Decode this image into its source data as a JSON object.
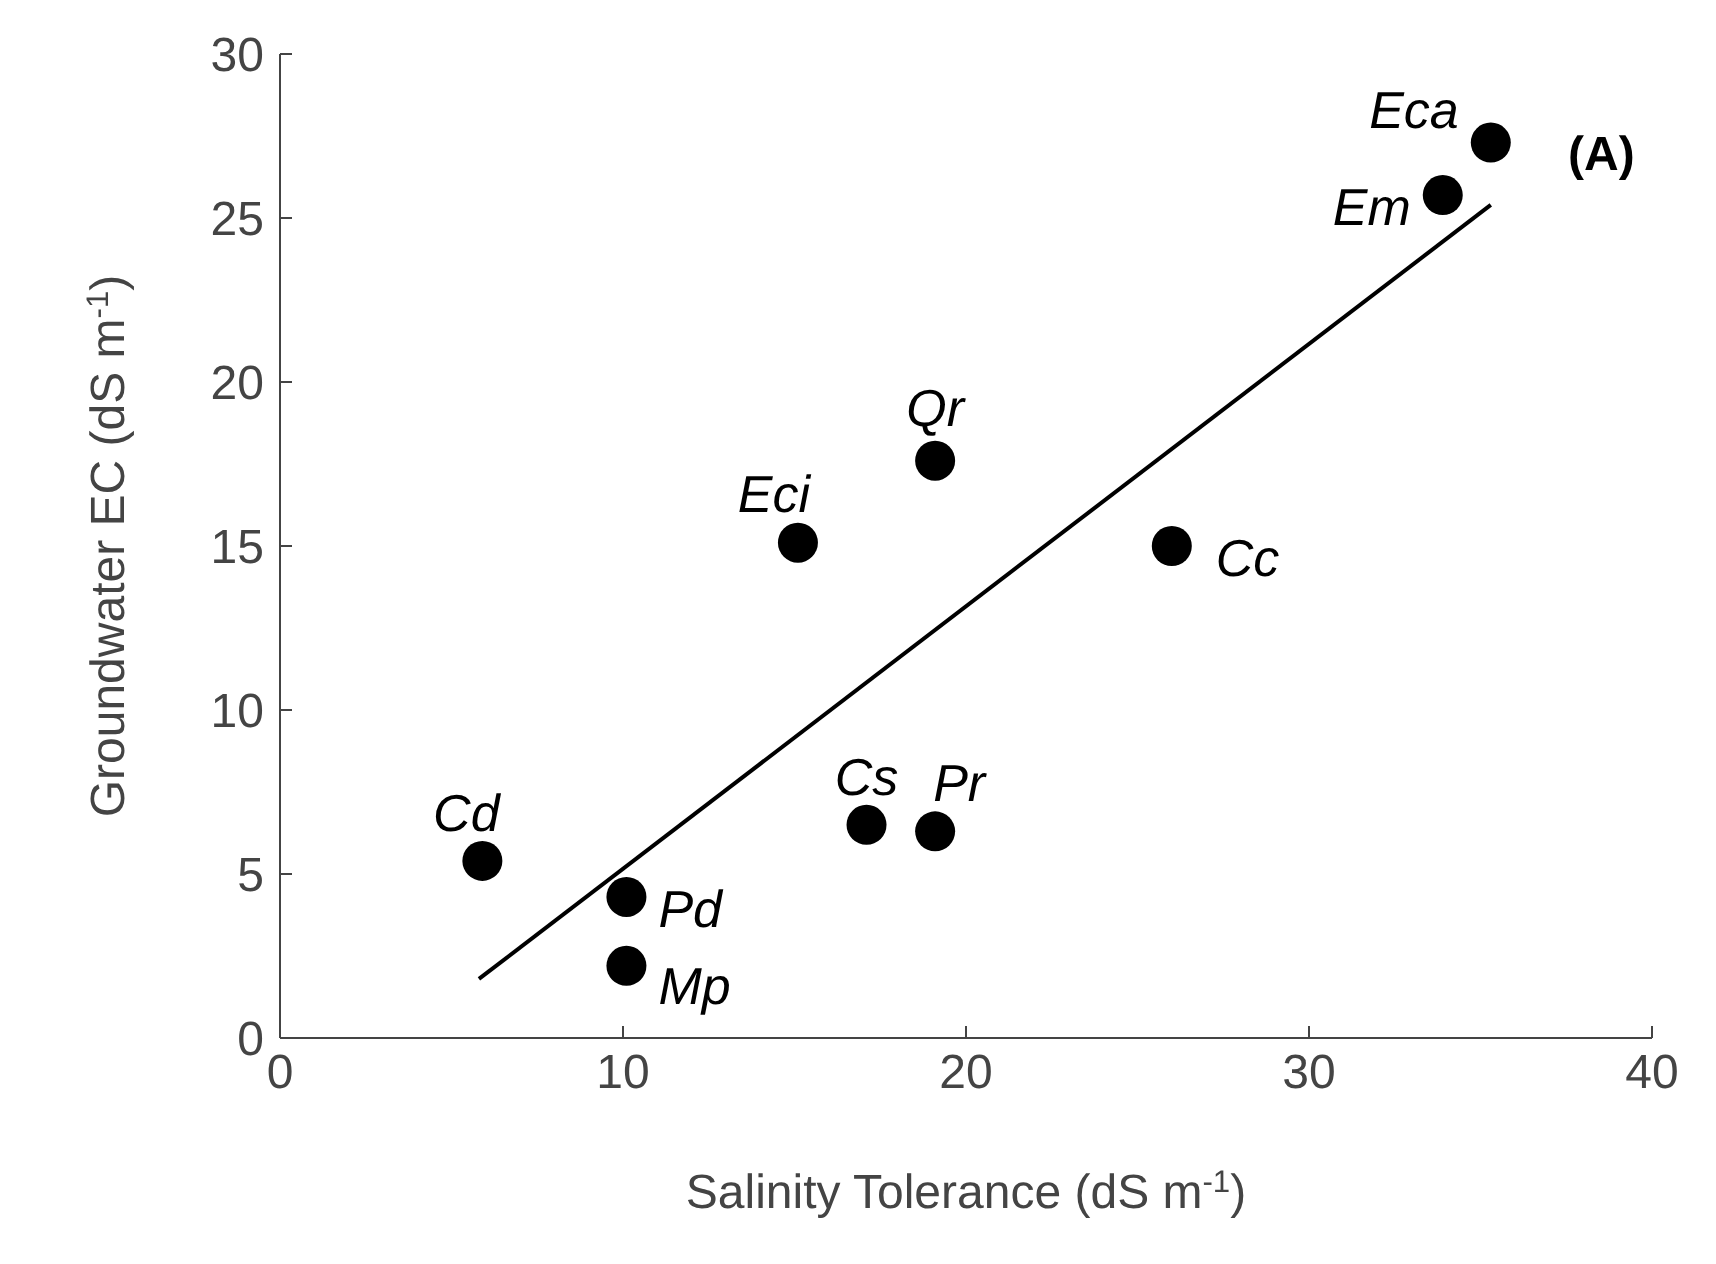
{
  "chart_data": {
    "type": "scatter",
    "xlabel": "Salinity Tolerance (dS m$^{-1}$)",
    "ylabel": "Groundwater EC (dS m$^{-1}$)",
    "xlim": [
      0,
      40
    ],
    "xticks": [
      0,
      10,
      20,
      30,
      40
    ],
    "ylim": [
      0,
      30
    ],
    "yticks": [
      0,
      5,
      10,
      15,
      20,
      25,
      30
    ],
    "series": [
      {
        "color": "#000000",
        "marker": "circle",
        "x": [
          5.9,
          10.1,
          10.1,
          15.1,
          19.1,
          17.1,
          19.1,
          26.0,
          33.9,
          35.3
        ],
        "values": [
          5.4,
          4.3,
          2.2,
          15.1,
          17.6,
          6.5,
          6.3,
          15.0,
          25.7,
          27.3
        ]
      },
      {
        "type": "line",
        "color": "#000000",
        "x": [
          5.8,
          35.3
        ],
        "values": [
          1.8,
          25.4
        ]
      }
    ],
    "annotations": [
      {
        "text": "Cd",
        "x": 5.9,
        "y": 5.4
      },
      {
        "text": "Pd",
        "x": 10.1,
        "y": 4.3
      },
      {
        "text": "Mp",
        "x": 10.1,
        "y": 2.2
      },
      {
        "text": "Eci",
        "x": 15.1,
        "y": 15.1
      },
      {
        "text": "Qr",
        "x": 19.1,
        "y": 17.6
      },
      {
        "text": "Cs",
        "x": 17.1,
        "y": 6.5
      },
      {
        "text": "Pr",
        "x": 19.1,
        "y": 6.3
      },
      {
        "text": "Cc",
        "x": 26.0,
        "y": 15.0
      },
      {
        "text": "Em",
        "x": 33.9,
        "y": 25.7
      },
      {
        "text": "Eca",
        "x": 35.3,
        "y": 27.3
      },
      "(A)"
    ]
  }
}
